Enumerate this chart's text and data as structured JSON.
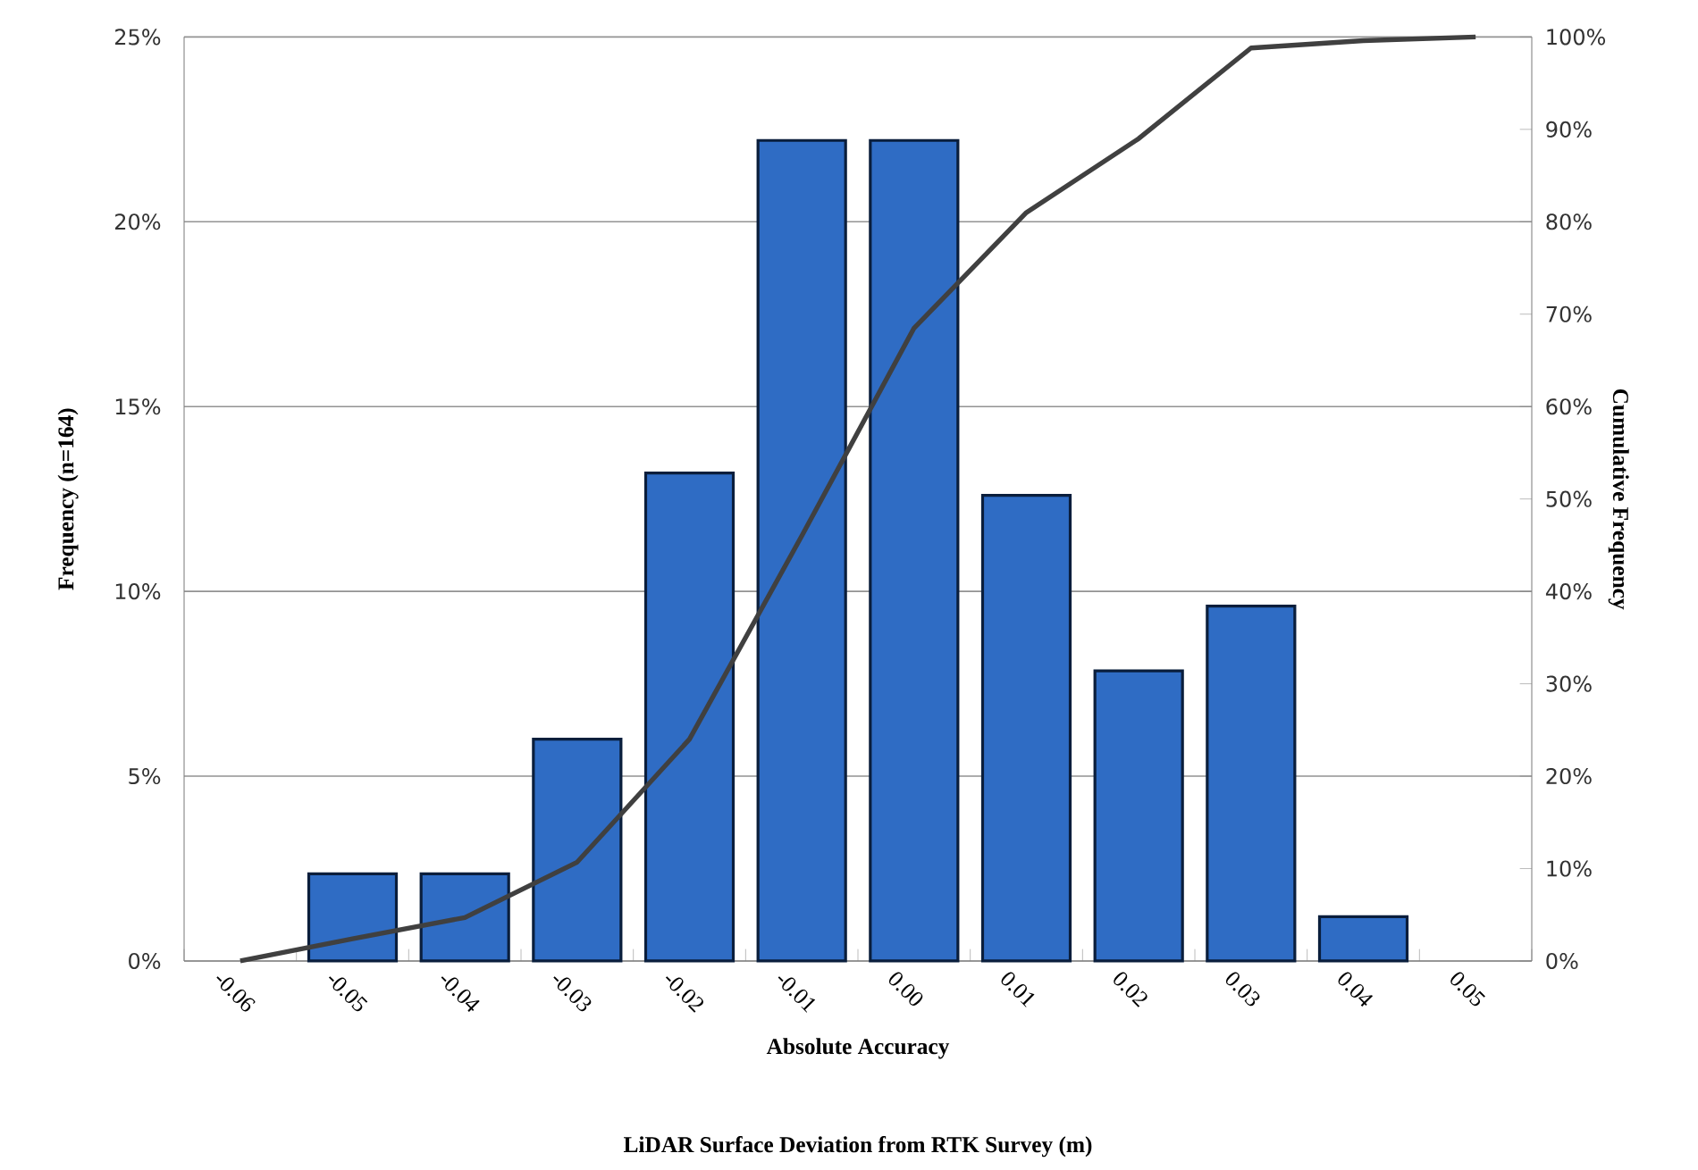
{
  "chart_data": {
    "type": "bar",
    "xlabel": "Absolute Accuracy",
    "ylabel": "Frequency (n=164)",
    "y2label": "Cumulative Frequency",
    "categories": [
      "-0.06",
      "-0.05",
      "-0.04",
      "-0.03",
      "-0.02",
      "-0.01",
      "0.00",
      "0.01",
      "0.02",
      "0.03",
      "0.04",
      "0.05"
    ],
    "series": [
      {
        "color": "#2f6cc4",
        "values": [
          null,
          2.36,
          2.36,
          6.0,
          13.2,
          22.2,
          22.2,
          12.6,
          7.85,
          9.6,
          1.2,
          null
        ]
      },
      {
        "type": "line",
        "axis": "y2",
        "color": "#404040",
        "marker": "none",
        "line_style": "solid",
        "values": [
          0,
          2.4,
          4.7,
          10.7,
          24,
          46,
          68.5,
          81,
          89,
          98.8,
          99.6,
          100
        ]
      }
    ],
    "ylim": [
      0,
      25
    ],
    "yticks": [
      {
        "value": 0,
        "label": "0%"
      },
      {
        "value": 5,
        "label": "5%"
      },
      {
        "value": 10,
        "label": "10%"
      },
      {
        "value": 15,
        "label": "15%"
      },
      {
        "value": 20,
        "label": "20%"
      },
      {
        "value": 25,
        "label": "25%"
      }
    ],
    "y2lim": [
      0,
      100
    ],
    "y2ticks": [
      {
        "value": 0,
        "label": "0%"
      },
      {
        "value": 10,
        "label": "10%"
      },
      {
        "value": 20,
        "label": "20%"
      },
      {
        "value": 30,
        "label": "30%"
      },
      {
        "value": 40,
        "label": "40%"
      },
      {
        "value": 50,
        "label": "50%"
      },
      {
        "value": 60,
        "label": "60%"
      },
      {
        "value": 70,
        "label": "70%"
      },
      {
        "value": 80,
        "label": "80%"
      },
      {
        "value": 90,
        "label": "90%"
      },
      {
        "value": 100,
        "label": "100%"
      }
    ],
    "grid": "y",
    "legend": false,
    "annotations": [
      "LiDAR Surface Deviation from RTK Survey (m)"
    ]
  }
}
